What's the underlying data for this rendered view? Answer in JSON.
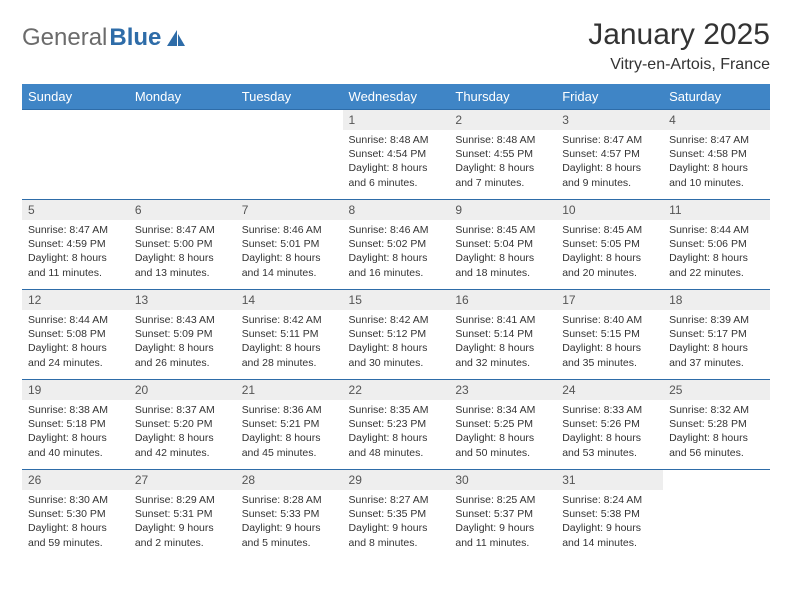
{
  "brand": {
    "part1": "General",
    "part2": "Blue"
  },
  "title": "January 2025",
  "location": "Vitry-en-Artois, France",
  "colors": {
    "header_bg": "#3f85c6",
    "border": "#2e6ca8",
    "daynum_bg": "#eeeeee",
    "text": "#333333",
    "logo_gray": "#6b6b6b",
    "logo_blue": "#2e6ca8"
  },
  "days_of_week": [
    "Sunday",
    "Monday",
    "Tuesday",
    "Wednesday",
    "Thursday",
    "Friday",
    "Saturday"
  ],
  "weeks": [
    [
      null,
      null,
      null,
      {
        "n": "1",
        "sr": "8:48 AM",
        "ss": "4:54 PM",
        "dl": "8 hours and 6 minutes."
      },
      {
        "n": "2",
        "sr": "8:48 AM",
        "ss": "4:55 PM",
        "dl": "8 hours and 7 minutes."
      },
      {
        "n": "3",
        "sr": "8:47 AM",
        "ss": "4:57 PM",
        "dl": "8 hours and 9 minutes."
      },
      {
        "n": "4",
        "sr": "8:47 AM",
        "ss": "4:58 PM",
        "dl": "8 hours and 10 minutes."
      }
    ],
    [
      {
        "n": "5",
        "sr": "8:47 AM",
        "ss": "4:59 PM",
        "dl": "8 hours and 11 minutes."
      },
      {
        "n": "6",
        "sr": "8:47 AM",
        "ss": "5:00 PM",
        "dl": "8 hours and 13 minutes."
      },
      {
        "n": "7",
        "sr": "8:46 AM",
        "ss": "5:01 PM",
        "dl": "8 hours and 14 minutes."
      },
      {
        "n": "8",
        "sr": "8:46 AM",
        "ss": "5:02 PM",
        "dl": "8 hours and 16 minutes."
      },
      {
        "n": "9",
        "sr": "8:45 AM",
        "ss": "5:04 PM",
        "dl": "8 hours and 18 minutes."
      },
      {
        "n": "10",
        "sr": "8:45 AM",
        "ss": "5:05 PM",
        "dl": "8 hours and 20 minutes."
      },
      {
        "n": "11",
        "sr": "8:44 AM",
        "ss": "5:06 PM",
        "dl": "8 hours and 22 minutes."
      }
    ],
    [
      {
        "n": "12",
        "sr": "8:44 AM",
        "ss": "5:08 PM",
        "dl": "8 hours and 24 minutes."
      },
      {
        "n": "13",
        "sr": "8:43 AM",
        "ss": "5:09 PM",
        "dl": "8 hours and 26 minutes."
      },
      {
        "n": "14",
        "sr": "8:42 AM",
        "ss": "5:11 PM",
        "dl": "8 hours and 28 minutes."
      },
      {
        "n": "15",
        "sr": "8:42 AM",
        "ss": "5:12 PM",
        "dl": "8 hours and 30 minutes."
      },
      {
        "n": "16",
        "sr": "8:41 AM",
        "ss": "5:14 PM",
        "dl": "8 hours and 32 minutes."
      },
      {
        "n": "17",
        "sr": "8:40 AM",
        "ss": "5:15 PM",
        "dl": "8 hours and 35 minutes."
      },
      {
        "n": "18",
        "sr": "8:39 AM",
        "ss": "5:17 PM",
        "dl": "8 hours and 37 minutes."
      }
    ],
    [
      {
        "n": "19",
        "sr": "8:38 AM",
        "ss": "5:18 PM",
        "dl": "8 hours and 40 minutes."
      },
      {
        "n": "20",
        "sr": "8:37 AM",
        "ss": "5:20 PM",
        "dl": "8 hours and 42 minutes."
      },
      {
        "n": "21",
        "sr": "8:36 AM",
        "ss": "5:21 PM",
        "dl": "8 hours and 45 minutes."
      },
      {
        "n": "22",
        "sr": "8:35 AM",
        "ss": "5:23 PM",
        "dl": "8 hours and 48 minutes."
      },
      {
        "n": "23",
        "sr": "8:34 AM",
        "ss": "5:25 PM",
        "dl": "8 hours and 50 minutes."
      },
      {
        "n": "24",
        "sr": "8:33 AM",
        "ss": "5:26 PM",
        "dl": "8 hours and 53 minutes."
      },
      {
        "n": "25",
        "sr": "8:32 AM",
        "ss": "5:28 PM",
        "dl": "8 hours and 56 minutes."
      }
    ],
    [
      {
        "n": "26",
        "sr": "8:30 AM",
        "ss": "5:30 PM",
        "dl": "8 hours and 59 minutes."
      },
      {
        "n": "27",
        "sr": "8:29 AM",
        "ss": "5:31 PM",
        "dl": "9 hours and 2 minutes."
      },
      {
        "n": "28",
        "sr": "8:28 AM",
        "ss": "5:33 PM",
        "dl": "9 hours and 5 minutes."
      },
      {
        "n": "29",
        "sr": "8:27 AM",
        "ss": "5:35 PM",
        "dl": "9 hours and 8 minutes."
      },
      {
        "n": "30",
        "sr": "8:25 AM",
        "ss": "5:37 PM",
        "dl": "9 hours and 11 minutes."
      },
      {
        "n": "31",
        "sr": "8:24 AM",
        "ss": "5:38 PM",
        "dl": "9 hours and 14 minutes."
      },
      null
    ]
  ],
  "labels": {
    "sunrise": "Sunrise: ",
    "sunset": "Sunset: ",
    "daylight": "Daylight: "
  }
}
